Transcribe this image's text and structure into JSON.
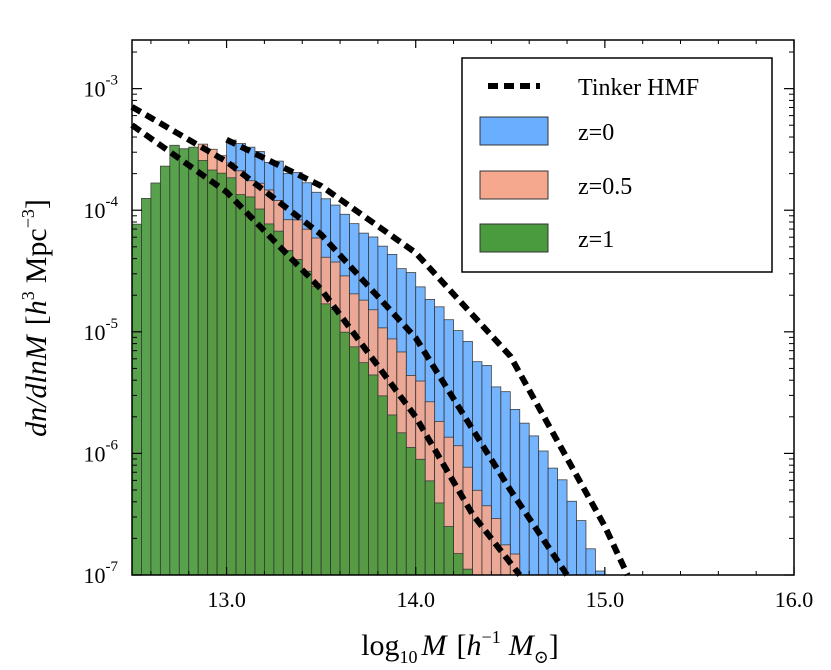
{
  "chart_data": {
    "type": "histogram",
    "title": "",
    "xlabel": "log10 M [h^-1 M_sun]",
    "ylabel": "dn/dlnM [h^3 Mpc^-3]",
    "xlabel_parts": {
      "main": "log",
      "sub": "10",
      "var": "M",
      "bracket_open": "[",
      "h": "h",
      "exp": "−1",
      "msun": "M",
      "sun": "⊙",
      "bracket_close": "]"
    },
    "ylabel_parts": {
      "main": "dn/dlnM",
      "bracket_open": "[",
      "h": "h",
      "exp_h": "3",
      "mpc": "Mpc",
      "exp_mpc": "−3",
      "bracket_close": "]"
    },
    "xlim": [
      12.5,
      16.0
    ],
    "ylim_log10": [
      -7,
      -2.6
    ],
    "xticks": [
      {
        "value": 13.0,
        "label": "13.0"
      },
      {
        "value": 14.0,
        "label": "14.0"
      },
      {
        "value": 15.0,
        "label": "15.0"
      },
      {
        "value": 16.0,
        "label": "16.0"
      }
    ],
    "yticks": [
      {
        "exp": -7,
        "base": "10",
        "sup": "-7"
      },
      {
        "exp": -6,
        "base": "10",
        "sup": "-6"
      },
      {
        "exp": -5,
        "base": "10",
        "sup": "-5"
      },
      {
        "exp": -4,
        "base": "10",
        "sup": "-4"
      },
      {
        "exp": -3,
        "base": "10",
        "sup": "-3"
      }
    ],
    "legend_position": "top-right",
    "legend": [
      {
        "label": "Tinker HMF",
        "kind": "line"
      },
      {
        "label": "z=0",
        "kind": "patch"
      },
      {
        "label": "z=0.5",
        "kind": "patch"
      },
      {
        "label": "z=1",
        "kind": "patch"
      }
    ],
    "bin_width": 0.05,
    "series": [
      {
        "name": "z=0",
        "color": "#6aaeff",
        "edge": "#333333",
        "min_mass": 13.0,
        "peak_log10": -3.42,
        "peak_mass": 13.0,
        "cutoff_mass": 15.12,
        "noise": 0.08,
        "curve_slope": 0.62,
        "curve_curv": 0.55
      },
      {
        "name": "z=0.5",
        "color": "#f5a88e",
        "edge": "#333333",
        "min_mass": 12.85,
        "peak_log10": -3.45,
        "peak_mass": 12.85,
        "cutoff_mass": 14.8,
        "noise": 0.1,
        "curve_slope": 0.9,
        "curve_curv": 0.68
      },
      {
        "name": "z=1",
        "color": "#4a9a3e",
        "edge": "#333333",
        "min_mass": 12.5,
        "peak_log10": -3.45,
        "peak_mass": 12.75,
        "cutoff_mass": 14.55,
        "noise": 0.12,
        "curve_slope": 1.0,
        "curve_curv": 0.85
      }
    ],
    "tinker_curves": [
      {
        "name": "z=0",
        "x": [
          13.0,
          13.5,
          14.0,
          14.5,
          15.0,
          15.12
        ],
        "log10_y": [
          -3.42,
          -3.8,
          -4.35,
          -5.2,
          -6.6,
          -7.0
        ]
      },
      {
        "name": "z=0.5",
        "x": [
          12.5,
          13.0,
          13.5,
          14.0,
          14.5,
          14.8
        ],
        "log10_y": [
          -3.15,
          -3.6,
          -4.2,
          -5.05,
          -6.3,
          -7.0
        ]
      },
      {
        "name": "z=1",
        "x": [
          12.5,
          13.0,
          13.5,
          14.0,
          14.3,
          14.55
        ],
        "log10_y": [
          -3.3,
          -3.85,
          -4.65,
          -5.7,
          -6.5,
          -7.0
        ]
      }
    ]
  }
}
